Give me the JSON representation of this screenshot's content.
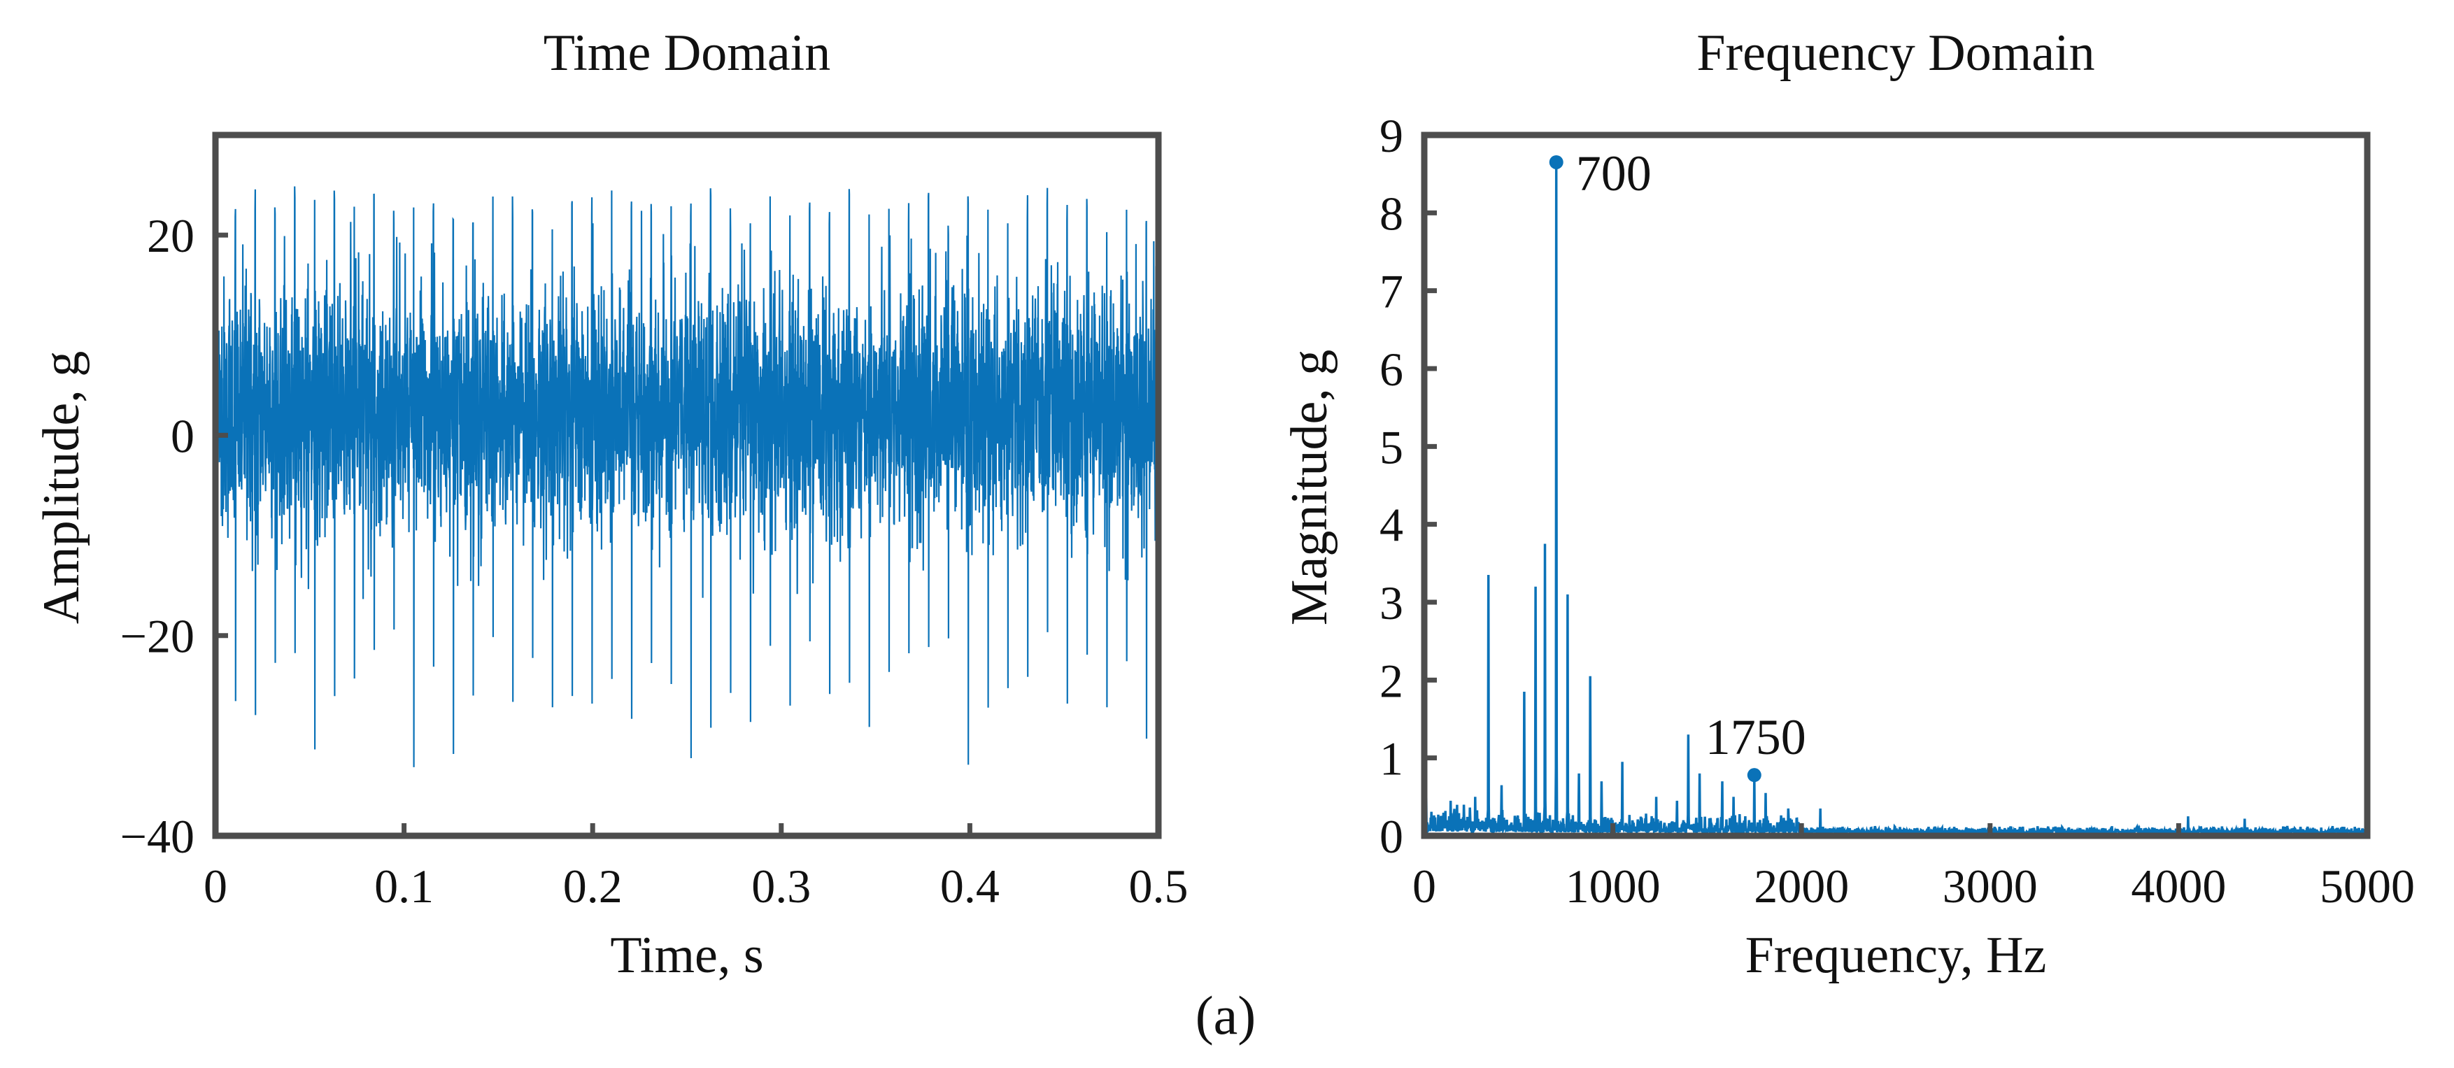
{
  "figure": {
    "caption": "(a)"
  },
  "colors": {
    "signal": "#0a72b8",
    "frame": "#4d4d4d",
    "text": "#111111"
  },
  "chart_data": [
    {
      "type": "line",
      "title": "Time Domain",
      "xlabel": "Time, s",
      "ylabel": "Amplitude, g",
      "xlim": [
        0,
        0.5
      ],
      "ylim": [
        -40,
        30
      ],
      "xticks": [
        0,
        0.1,
        0.2,
        0.3,
        0.4,
        0.5
      ],
      "xtick_labels": [
        "0",
        "0.1",
        "0.2",
        "0.3",
        "0.4",
        "0.5"
      ],
      "yticks": [
        -40,
        -20,
        0,
        20
      ],
      "ytick_labels": [
        "−40",
        "−20",
        "0",
        "20"
      ],
      "signal": {
        "description_values": "vibration acceleration signal, dense oscillation mostly within -15..20 g with periodic impulses",
        "sample_rate_hz_estimate": 10000,
        "baseline_range": [
          -15,
          20
        ],
        "impulse_positive_peaks_g": [
          26,
          24,
          25,
          23,
          25,
          24,
          25,
          24,
          25,
          23,
          24,
          25,
          23,
          24
        ],
        "impulse_negative_peaks_g": [
          -27,
          -32,
          -35,
          -29,
          -27,
          -30,
          -28,
          -29,
          -32,
          -28,
          -29,
          -30,
          -28,
          -26
        ],
        "impulse_interval_s": 0.0105
      }
    },
    {
      "type": "line",
      "title": "Frequency Domain",
      "xlabel": "Frequency, Hz",
      "ylabel": "Magnitude, g",
      "xlim": [
        0,
        5000
      ],
      "ylim": [
        0,
        9
      ],
      "xticks": [
        0,
        1000,
        2000,
        3000,
        4000,
        5000
      ],
      "xtick_labels": [
        "0",
        "1000",
        "2000",
        "3000",
        "4000",
        "5000"
      ],
      "yticks": [
        0,
        1,
        2,
        3,
        4,
        5,
        6,
        7,
        8,
        9
      ],
      "ytick_labels": [
        "0",
        "1",
        "2",
        "3",
        "4",
        "5",
        "6",
        "7",
        "8",
        "9"
      ],
      "peaks": [
        {
          "f": 10,
          "m": 0.55
        },
        {
          "f": 140,
          "m": 0.45
        },
        {
          "f": 210,
          "m": 0.4
        },
        {
          "f": 270,
          "m": 0.5
        },
        {
          "f": 340,
          "m": 3.35
        },
        {
          "f": 410,
          "m": 0.65
        },
        {
          "f": 530,
          "m": 1.85
        },
        {
          "f": 590,
          "m": 3.2
        },
        {
          "f": 640,
          "m": 3.75
        },
        {
          "f": 700,
          "m": 8.65
        },
        {
          "f": 760,
          "m": 3.1
        },
        {
          "f": 820,
          "m": 0.8
        },
        {
          "f": 880,
          "m": 2.05
        },
        {
          "f": 940,
          "m": 0.7
        },
        {
          "f": 1050,
          "m": 0.95
        },
        {
          "f": 1230,
          "m": 0.5
        },
        {
          "f": 1340,
          "m": 0.45
        },
        {
          "f": 1400,
          "m": 1.3
        },
        {
          "f": 1460,
          "m": 0.8
        },
        {
          "f": 1580,
          "m": 0.7
        },
        {
          "f": 1640,
          "m": 0.5
        },
        {
          "f": 1750,
          "m": 0.78
        },
        {
          "f": 1810,
          "m": 0.55
        },
        {
          "f": 1930,
          "m": 0.35
        },
        {
          "f": 2100,
          "m": 0.35
        },
        {
          "f": 4050,
          "m": 0.25
        },
        {
          "f": 4350,
          "m": 0.22
        }
      ],
      "noise_floor": {
        "low_band_max_hz": 2000,
        "low_band_level": 0.15,
        "high_band_level": 0.08
      },
      "annotations": [
        {
          "f": 700,
          "m": 8.65,
          "label": "700"
        },
        {
          "f": 1750,
          "m": 0.78,
          "label": "1750"
        }
      ]
    }
  ]
}
